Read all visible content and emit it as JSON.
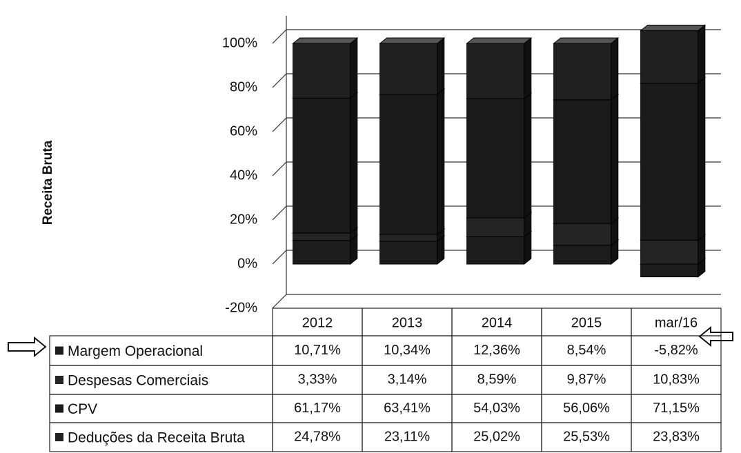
{
  "chart_data": {
    "type": "bar",
    "stacked": true,
    "y_label": "Receita Bruta",
    "categories": [
      "2012",
      "2013",
      "2014",
      "2015",
      "mar/16"
    ],
    "series": [
      {
        "name": "Margem Operacional",
        "color": "#1c1c1c",
        "values": [
          10.71,
          10.34,
          12.36,
          8.54,
          -5.82
        ],
        "value_labels": [
          "10,71%",
          "10,34%",
          "12,36%",
          "8,54%",
          "-5,82%"
        ]
      },
      {
        "name": "Despesas Comerciais",
        "color": "#242424",
        "values": [
          3.33,
          3.14,
          8.59,
          9.87,
          10.83
        ],
        "value_labels": [
          "3,33%",
          "3,14%",
          "8,59%",
          "9,87%",
          "10,83%"
        ]
      },
      {
        "name": "CPV",
        "color": "#1a1a1a",
        "values": [
          61.17,
          63.41,
          54.03,
          56.06,
          71.15
        ],
        "value_labels": [
          "61,17%",
          "63,41%",
          "54,03%",
          "56,06%",
          "71,15%"
        ]
      },
      {
        "name": "Deduções da Receita Bruta",
        "color": "#202020",
        "values": [
          24.78,
          23.11,
          25.02,
          25.53,
          23.83
        ],
        "value_labels": [
          "24,78%",
          "23,11%",
          "25,02%",
          "25,53%",
          "23,83%"
        ]
      }
    ],
    "ylim": [
      -20,
      100
    ],
    "yticks": [
      {
        "value": -20,
        "label": "-20%"
      },
      {
        "value": 0,
        "label": "0%"
      },
      {
        "value": 20,
        "label": "20%"
      },
      {
        "value": 40,
        "label": "40%"
      },
      {
        "value": 60,
        "label": "60%"
      },
      {
        "value": 80,
        "label": "80%"
      },
      {
        "value": 100,
        "label": "100%"
      }
    ],
    "grid": true
  }
}
